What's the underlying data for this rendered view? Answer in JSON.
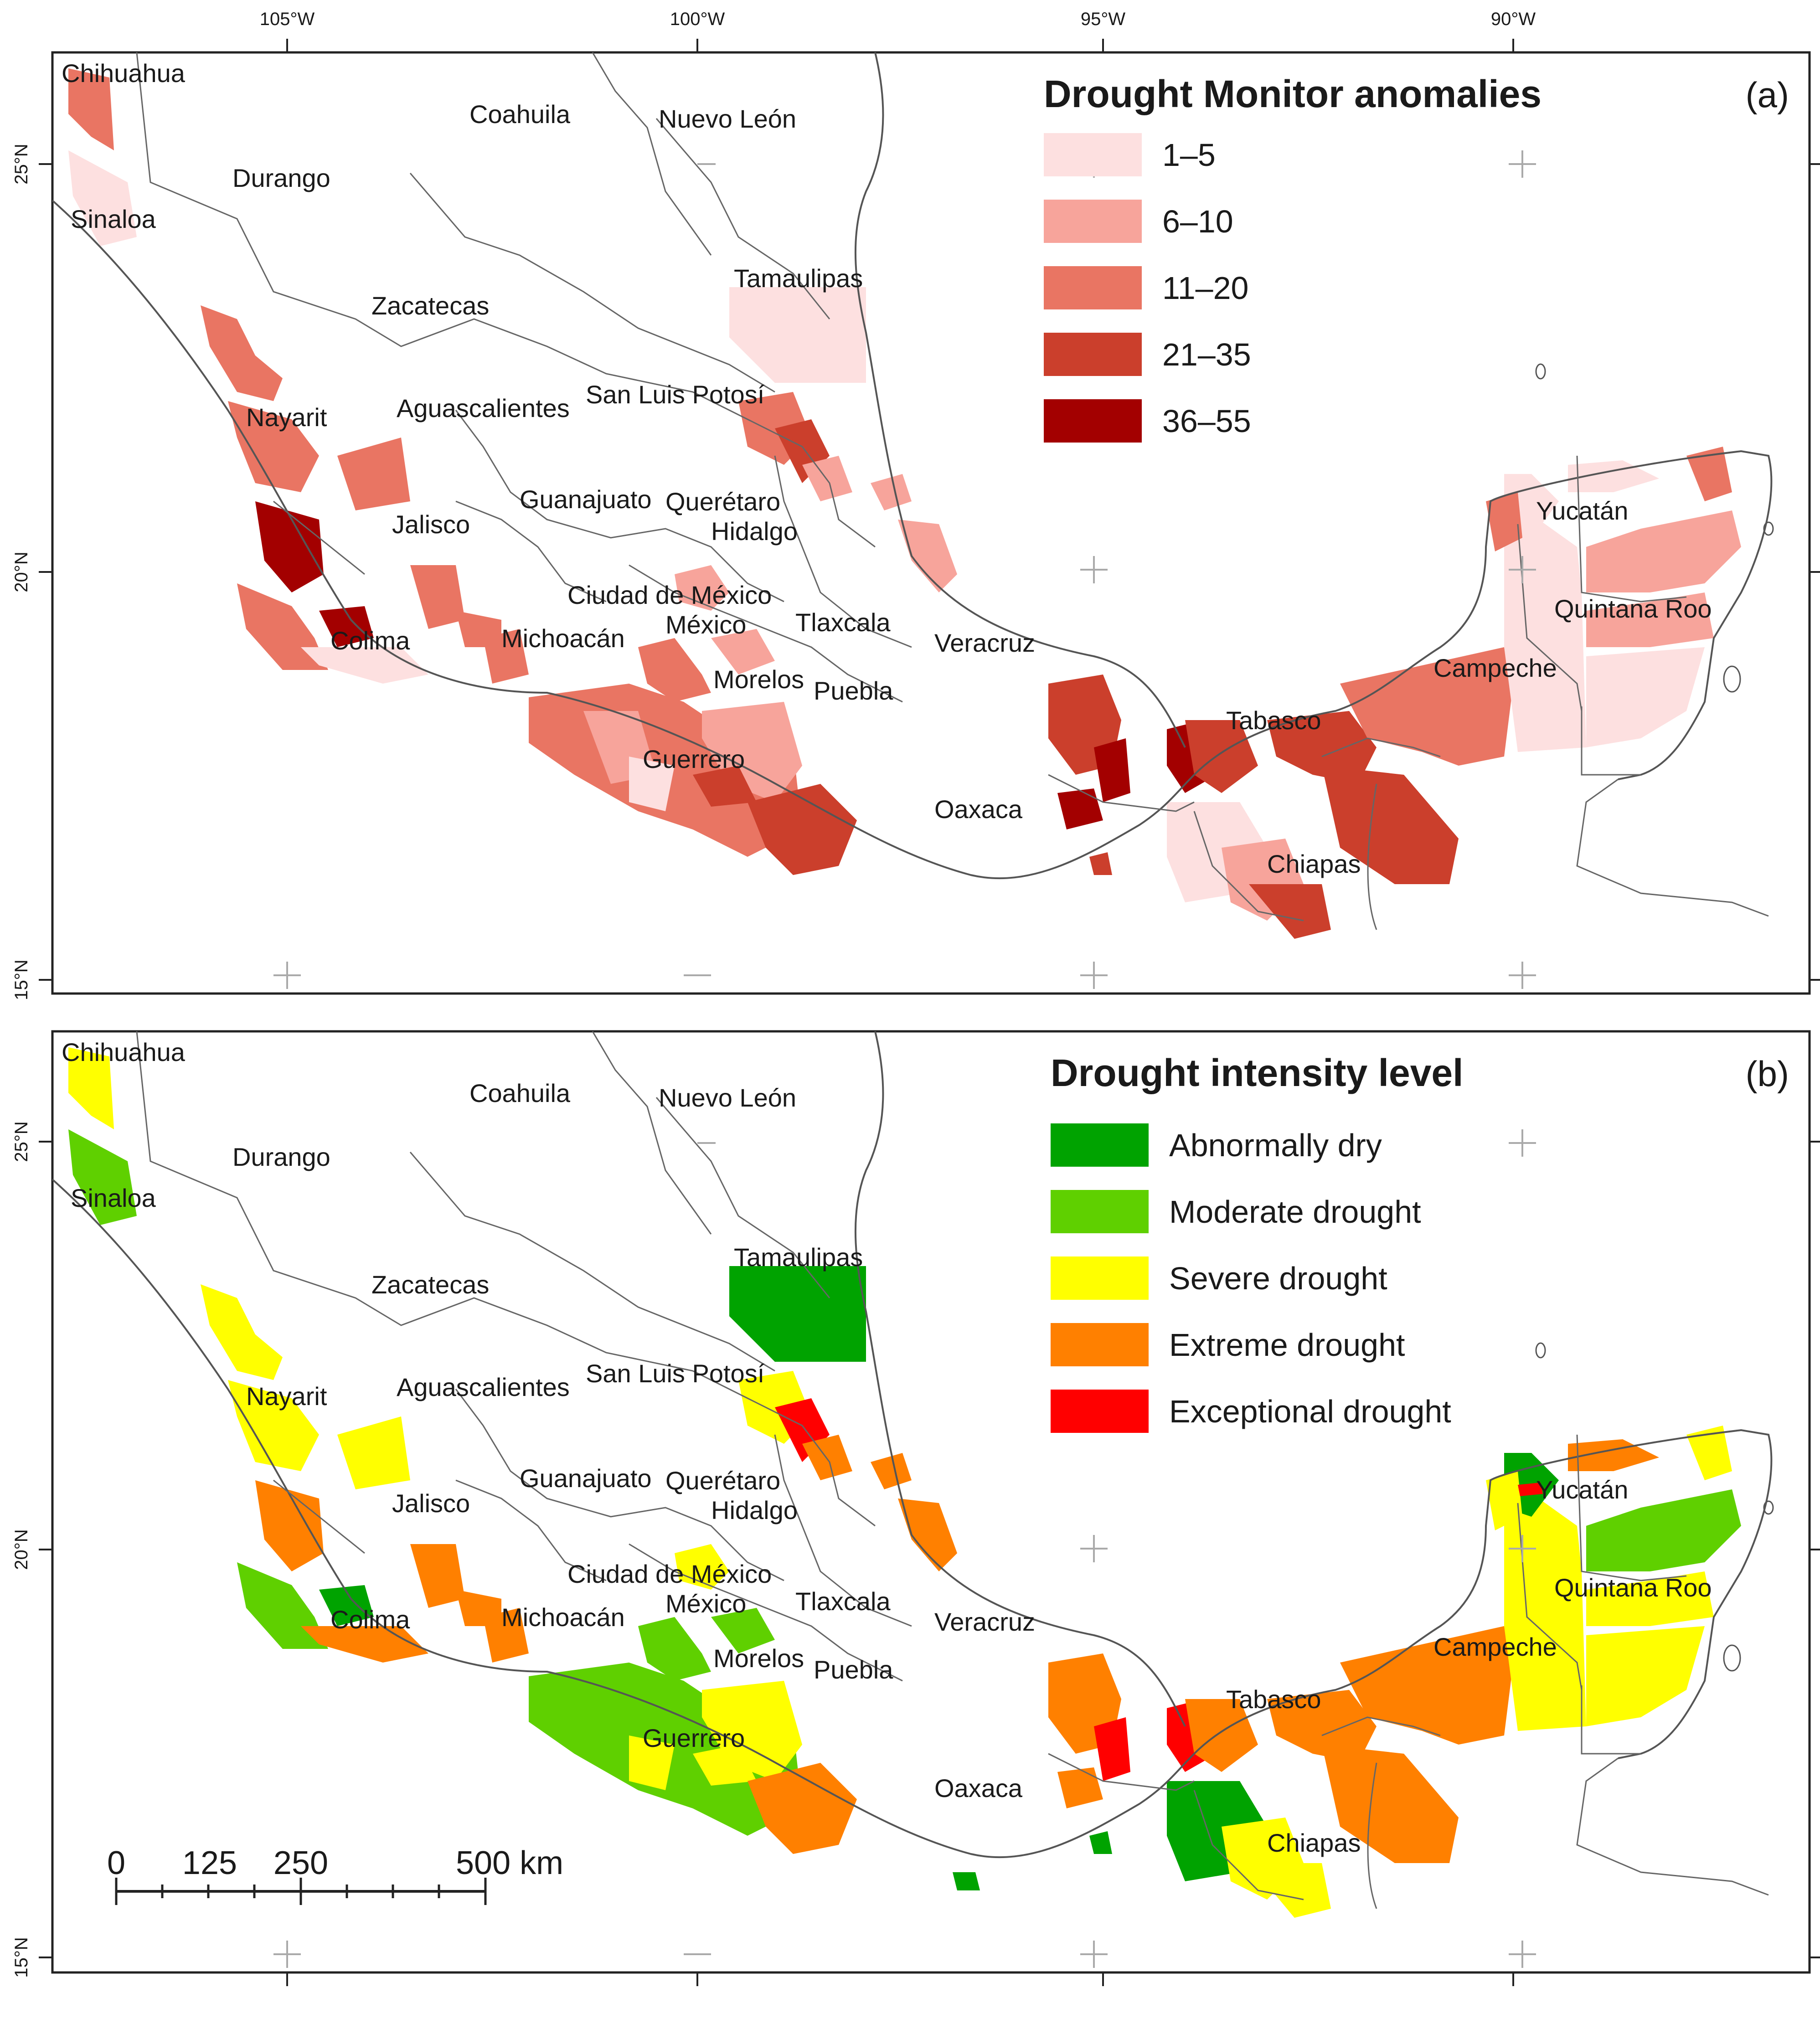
{
  "axes": {
    "longitude_ticks": [
      "105°W",
      "100°W",
      "95°W",
      "90°W"
    ],
    "latitude_ticks": [
      "25°N",
      "20°N",
      "15°N"
    ]
  },
  "panels": [
    {
      "id": "a",
      "panel_label": "(a)",
      "legend_title": "Drought Monitor anomalies",
      "legend": [
        {
          "label": "1–5",
          "color": "#fde0e0"
        },
        {
          "label": "6–10",
          "color": "#f7a49b"
        },
        {
          "label": "11–20",
          "color": "#e97563"
        },
        {
          "label": "21–35",
          "color": "#cb3f2c"
        },
        {
          "label": "36–55",
          "color": "#a30000"
        }
      ]
    },
    {
      "id": "b",
      "panel_label": "(b)",
      "legend_title": "Drought intensity level",
      "legend": [
        {
          "label": "Abnormally dry",
          "color": "#00a300"
        },
        {
          "label": "Moderate drought",
          "color": "#5fd000"
        },
        {
          "label": "Severe drought",
          "color": "#ffff00"
        },
        {
          "label": "Extreme drought",
          "color": "#ff8000"
        },
        {
          "label": "Exceptional drought",
          "color": "#ff0000"
        }
      ]
    }
  ],
  "states": [
    "Chihuahua",
    "Coahuila",
    "Nuevo León",
    "Durango",
    "Sinaloa",
    "Tamaulipas",
    "Zacatecas",
    "San Luis Potosí",
    "Nayarit",
    "Aguascalientes",
    "Guanajuato",
    "Querétaro",
    "Hidalgo",
    "Jalisco",
    "Yucatán",
    "Ciudad de México",
    "México",
    "Tlaxcala",
    "Colima",
    "Michoacán",
    "Veracruz",
    "Quintana Roo",
    "Campeche",
    "Morelos",
    "Puebla",
    "Tabasco",
    "Guerrero",
    "Oaxaca",
    "Chiapas"
  ],
  "scale_bar": {
    "labels": [
      "0",
      "125",
      "250",
      "500 km"
    ]
  }
}
